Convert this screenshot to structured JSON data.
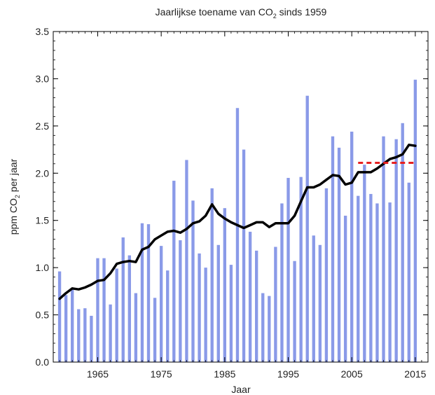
{
  "chart_data": {
    "type": "bar",
    "title_parts": {
      "before": "Jaarlijkse toename van CO",
      "sub": "2",
      "after": " sinds 1959"
    },
    "xlabel": "Jaar",
    "ylabel_parts": {
      "before": "ppm CO",
      "sub": "2",
      "after": " per jaar"
    },
    "xlim": [
      1958,
      2017
    ],
    "ylim": [
      0,
      3.5
    ],
    "x_ticks": [
      1965,
      1975,
      1985,
      1995,
      2005,
      2015
    ],
    "y_ticks": [
      0.0,
      0.5,
      1.0,
      1.5,
      2.0,
      2.5,
      3.0,
      3.5
    ],
    "y_tick_labels": [
      "0.0",
      "0.5",
      "1.0",
      "1.5",
      "2.0",
      "2.5",
      "3.0",
      "3.5"
    ],
    "grid": false,
    "colors": {
      "bars": "#8a9ae8",
      "trend": "#000000",
      "reference": "#e62020"
    },
    "series": [
      {
        "kind": "bar",
        "x": [
          1959,
          1960,
          1961,
          1962,
          1963,
          1964,
          1965,
          1966,
          1967,
          1968,
          1969,
          1970,
          1971,
          1972,
          1973,
          1974,
          1975,
          1976,
          1977,
          1978,
          1979,
          1980,
          1981,
          1982,
          1983,
          1984,
          1985,
          1986,
          1987,
          1988,
          1989,
          1990,
          1991,
          1992,
          1993,
          1994,
          1995,
          1996,
          1997,
          1998,
          1999,
          2000,
          2001,
          2002,
          2003,
          2004,
          2005,
          2006,
          2007,
          2008,
          2009,
          2010,
          2011,
          2012,
          2013,
          2014,
          2015
        ],
        "values": [
          0.96,
          0.71,
          0.78,
          0.56,
          0.57,
          0.49,
          1.1,
          1.1,
          0.61,
          0.99,
          1.32,
          1.13,
          0.73,
          1.47,
          1.46,
          0.68,
          1.23,
          0.97,
          1.92,
          1.29,
          2.14,
          1.71,
          1.15,
          1.0,
          1.84,
          1.24,
          1.63,
          1.03,
          2.69,
          2.25,
          1.38,
          1.18,
          0.73,
          0.7,
          1.22,
          1.68,
          1.95,
          1.07,
          1.96,
          2.82,
          1.34,
          1.24,
          1.84,
          2.39,
          2.27,
          1.55,
          2.44,
          1.76,
          2.09,
          1.78,
          1.68,
          2.39,
          1.69,
          2.36,
          2.53,
          1.9,
          2.99
        ]
      },
      {
        "kind": "line",
        "x": [
          1959,
          1960,
          1961,
          1962,
          1963,
          1964,
          1965,
          1966,
          1967,
          1968,
          1969,
          1970,
          1971,
          1972,
          1973,
          1974,
          1975,
          1976,
          1977,
          1978,
          1979,
          1980,
          1981,
          1982,
          1983,
          1984,
          1985,
          1986,
          1987,
          1988,
          1989,
          1990,
          1991,
          1992,
          1993,
          1994,
          1995,
          1996,
          1997,
          1998,
          1999,
          2000,
          2001,
          2002,
          2003,
          2004,
          2005,
          2006,
          2007,
          2008,
          2009,
          2010,
          2011,
          2012,
          2013,
          2014,
          2015
        ],
        "values": [
          0.67,
          0.73,
          0.78,
          0.77,
          0.79,
          0.82,
          0.86,
          0.87,
          0.94,
          1.04,
          1.06,
          1.07,
          1.06,
          1.19,
          1.22,
          1.3,
          1.34,
          1.38,
          1.39,
          1.37,
          1.41,
          1.47,
          1.49,
          1.55,
          1.67,
          1.57,
          1.52,
          1.48,
          1.45,
          1.42,
          1.45,
          1.48,
          1.48,
          1.43,
          1.47,
          1.47,
          1.47,
          1.55,
          1.7,
          1.85,
          1.85,
          1.88,
          1.93,
          1.98,
          1.97,
          1.88,
          1.9,
          2.01,
          2.01,
          2.01,
          2.05,
          2.1,
          2.15,
          2.17,
          2.2,
          2.3,
          2.29
        ]
      },
      {
        "kind": "reference",
        "style": "dashed",
        "x": [
          2006,
          2015
        ],
        "values": [
          2.11,
          2.11
        ]
      }
    ]
  }
}
